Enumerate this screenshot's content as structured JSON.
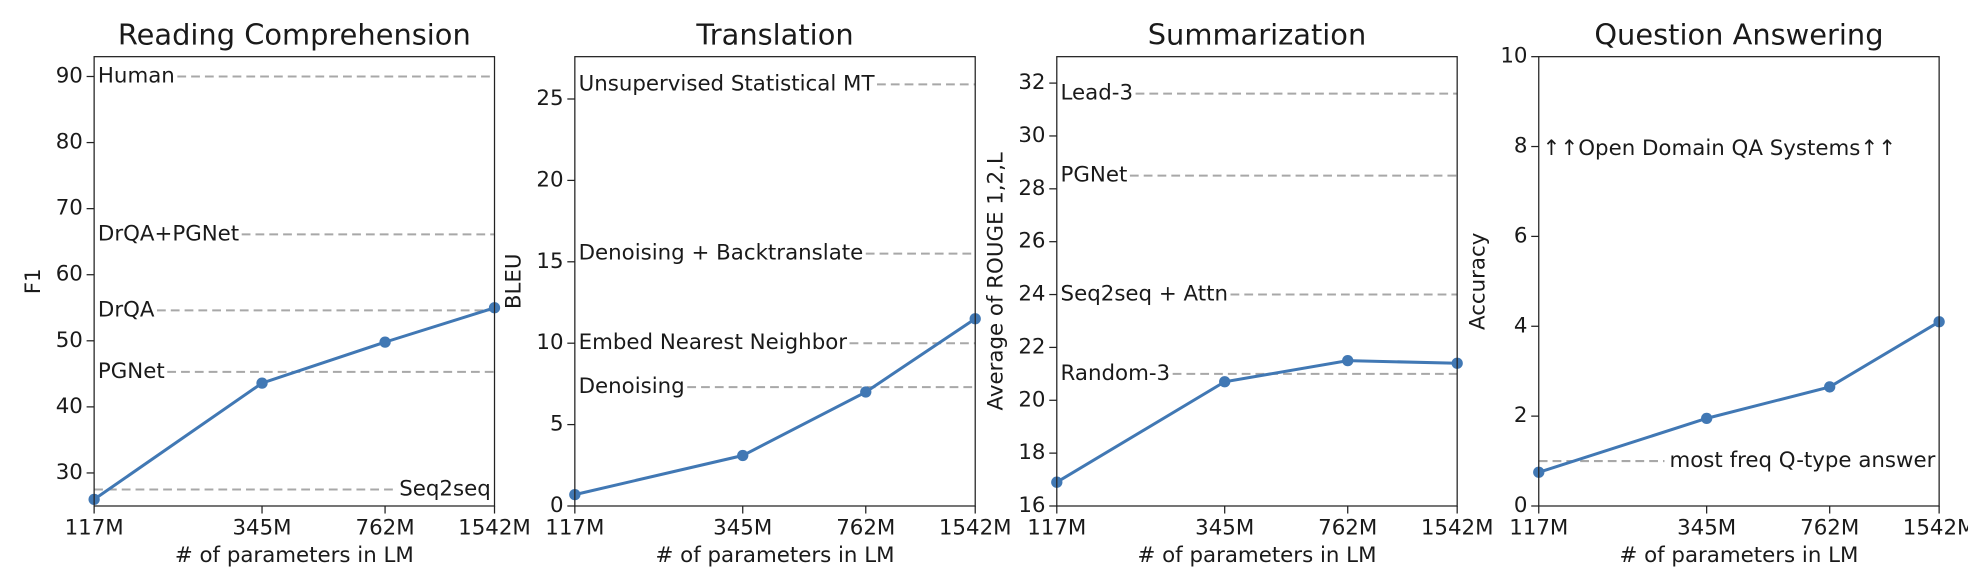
{
  "chart_data": [
    {
      "type": "line",
      "title": "Reading Comprehension",
      "xlabel": "# of parameters in LM",
      "ylabel": "F1",
      "x": [
        117,
        345,
        762,
        1542
      ],
      "values": [
        26.0,
        43.6,
        49.8,
        55.0
      ],
      "color": "#4178b4",
      "xscale": "log",
      "xlim": [
        117,
        1542
      ],
      "xticks": [
        {
          "value": 117,
          "label": "117M"
        },
        {
          "value": 345,
          "label": "345M"
        },
        {
          "value": 762,
          "label": "762M"
        },
        {
          "value": 1542,
          "label": "1542M"
        }
      ],
      "ylim": [
        25,
        93
      ],
      "yticks": [
        30,
        40,
        50,
        60,
        70,
        80,
        90
      ],
      "baselines": [
        {
          "label": "Human",
          "value": 90
        },
        {
          "label": "DrQA+PGNet",
          "value": 66.1
        },
        {
          "label": "DrQA",
          "value": 54.6
        },
        {
          "label": "PGNet",
          "value": 45.3
        },
        {
          "label": "Seq2seq",
          "value": 27.5,
          "label_side": "right"
        }
      ]
    },
    {
      "type": "line",
      "title": "Translation",
      "xlabel": "# of parameters in LM",
      "ylabel": "BLEU",
      "x": [
        117,
        345,
        762,
        1542
      ],
      "values": [
        0.7,
        3.1,
        7.0,
        11.5
      ],
      "color": "#4178b4",
      "xscale": "log",
      "xlim": [
        117,
        1542
      ],
      "xticks": [
        {
          "value": 117,
          "label": "117M"
        },
        {
          "value": 345,
          "label": "345M"
        },
        {
          "value": 762,
          "label": "762M"
        },
        {
          "value": 1542,
          "label": "1542M"
        }
      ],
      "ylim": [
        0,
        27.6
      ],
      "yticks": [
        0,
        5,
        10,
        15,
        20,
        25
      ],
      "baselines": [
        {
          "label": "Unsupervised Statistical MT",
          "value": 25.9
        },
        {
          "label": "Denoising + Backtranslate",
          "value": 15.5
        },
        {
          "label": "Embed Nearest Neighbor",
          "value": 10
        },
        {
          "label": "Denoising",
          "value": 7.3
        }
      ]
    },
    {
      "type": "line",
      "title": "Summarization",
      "xlabel": "# of parameters in LM",
      "ylabel": "Average of ROUGE 1,2,L",
      "x": [
        117,
        345,
        762,
        1542
      ],
      "values": [
        16.9,
        20.7,
        21.5,
        21.4
      ],
      "color": "#4178b4",
      "xscale": "log",
      "xlim": [
        117,
        1542
      ],
      "xticks": [
        {
          "value": 117,
          "label": "117M"
        },
        {
          "value": 345,
          "label": "345M"
        },
        {
          "value": 762,
          "label": "762M"
        },
        {
          "value": 1542,
          "label": "1542M"
        }
      ],
      "ylim": [
        16,
        33
      ],
      "yticks": [
        16,
        18,
        20,
        22,
        24,
        26,
        28,
        30,
        32
      ],
      "baselines": [
        {
          "label": "Lead-3",
          "value": 31.6
        },
        {
          "label": "PGNet",
          "value": 28.5
        },
        {
          "label": "Seq2seq + Attn",
          "value": 24
        },
        {
          "label": "Random-3",
          "value": 21
        }
      ]
    },
    {
      "type": "line",
      "title": "Question Answering",
      "xlabel": "# of parameters in LM",
      "ylabel": "Accuracy",
      "x": [
        117,
        345,
        762,
        1542
      ],
      "values": [
        0.75,
        1.95,
        2.65,
        4.1
      ],
      "color": "#4178b4",
      "xscale": "log",
      "xlim": [
        117,
        1542
      ],
      "xticks": [
        {
          "value": 117,
          "label": "117M"
        },
        {
          "value": 345,
          "label": "345M"
        },
        {
          "value": 762,
          "label": "762M"
        },
        {
          "value": 1542,
          "label": "1542M"
        }
      ],
      "ylim": [
        0,
        10
      ],
      "yticks": [
        0,
        2,
        4,
        6,
        8,
        10
      ],
      "annotation": "↑↑Open Domain QA Systems↑↑",
      "baselines": [
        {
          "label": "most freq Q-type answer",
          "value": 1.0,
          "label_side": "right"
        }
      ]
    }
  ]
}
